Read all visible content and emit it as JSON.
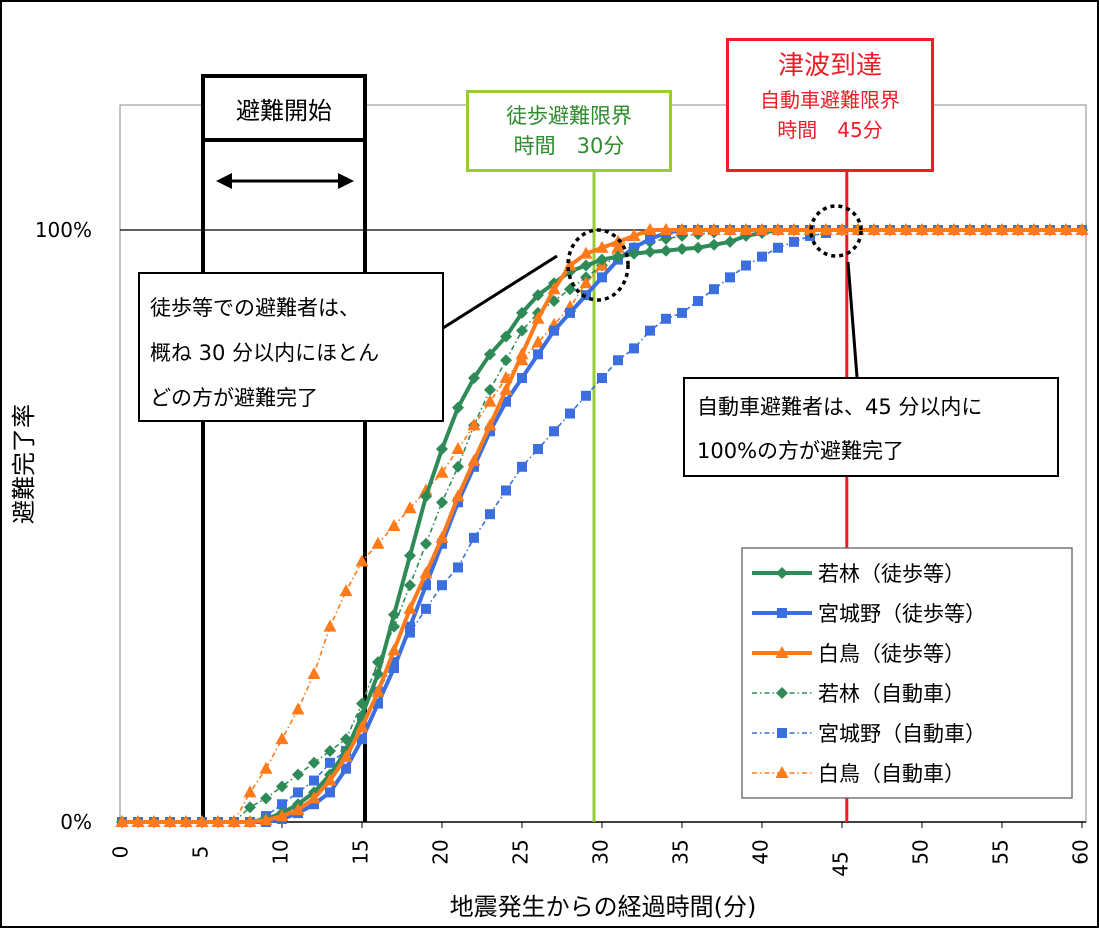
{
  "chart_data": {
    "type": "line",
    "xlabel": "地震発生からの経過時間(分)",
    "ylabel": "避難完了率",
    "xlim": [
      0,
      60
    ],
    "ylim": [
      0,
      100
    ],
    "x_ticks": [
      "0",
      "5",
      "10",
      "15",
      "20",
      "25",
      "30",
      "35",
      "40",
      "45",
      "50",
      "55",
      "60"
    ],
    "y_ticks": [
      "0%",
      "100%"
    ],
    "grid": false,
    "legend_position": "bottom-right",
    "x": [
      0,
      1,
      2,
      3,
      4,
      5,
      6,
      7,
      8,
      9,
      10,
      11,
      12,
      13,
      14,
      15,
      16,
      17,
      18,
      19,
      20,
      21,
      22,
      23,
      24,
      25,
      26,
      27,
      28,
      29,
      30,
      31,
      32,
      33,
      34,
      35,
      36,
      37,
      38,
      39,
      40,
      41,
      42,
      43,
      44,
      45,
      46,
      47,
      48,
      49,
      50,
      51,
      52,
      53,
      54,
      55,
      56,
      57,
      58,
      59,
      60
    ],
    "series": [
      {
        "name": "若林（徒歩等）",
        "style": "solid",
        "marker": "diamond",
        "color": "#2e8b57",
        "values": [
          0,
          0,
          0,
          0,
          0,
          0,
          0,
          0,
          0,
          0.5,
          1.5,
          3,
          5,
          8,
          12,
          18,
          25,
          35,
          45,
          55,
          63,
          70,
          75,
          79,
          82,
          86,
          89,
          91,
          93,
          94,
          95,
          95.5,
          96,
          96.3,
          96.5,
          96.8,
          97,
          97.5,
          98,
          99,
          99.5,
          100,
          100,
          100,
          100,
          100,
          100,
          100,
          100,
          100,
          100,
          100,
          100,
          100,
          100,
          100,
          100,
          100,
          100,
          100,
          100
        ]
      },
      {
        "name": "宮城野（徒歩等）",
        "style": "solid",
        "marker": "square",
        "color": "#3b6fe0",
        "values": [
          0,
          0,
          0,
          0,
          0,
          0,
          0,
          0,
          0,
          0,
          0.5,
          1.5,
          3,
          5,
          9,
          14,
          20,
          26,
          33,
          40,
          47,
          54,
          60,
          66,
          71,
          75,
          79,
          83,
          86,
          89,
          92,
          95,
          97,
          98.5,
          99.5,
          100,
          100,
          100,
          100,
          100,
          100,
          100,
          100,
          100,
          100,
          100,
          100,
          100,
          100,
          100,
          100,
          100,
          100,
          100,
          100,
          100,
          100,
          100,
          100,
          100,
          100
        ]
      },
      {
        "name": "白鳥（徒歩等）",
        "style": "solid",
        "marker": "triangle",
        "color": "#ff7a1a",
        "values": [
          0,
          0,
          0,
          0,
          0,
          0,
          0,
          0,
          0,
          0.3,
          1,
          2,
          4,
          7,
          11,
          16,
          22,
          29,
          36,
          42,
          48,
          55,
          61,
          67,
          73,
          79,
          85,
          90,
          94,
          96,
          97,
          98,
          99,
          100,
          100,
          100,
          100,
          100,
          100,
          100,
          100,
          100,
          100,
          100,
          100,
          100,
          100,
          100,
          100,
          100,
          100,
          100,
          100,
          100,
          100,
          100,
          100,
          100,
          100,
          100,
          100
        ]
      },
      {
        "name": "若林（自動車）",
        "style": "dotted",
        "marker": "diamond",
        "color": "#2e8b57",
        "values": [
          0,
          0,
          0,
          0,
          0,
          0,
          0,
          0,
          2.5,
          4,
          6,
          8,
          10,
          12,
          14,
          20,
          27,
          33,
          40,
          47,
          54,
          60,
          67,
          73,
          78,
          83,
          86,
          88,
          90,
          92,
          94,
          95.5,
          97,
          98,
          98.5,
          99,
          99.3,
          99.6,
          100,
          100,
          100,
          100,
          100,
          100,
          100,
          100,
          100,
          100,
          100,
          100,
          100,
          100,
          100,
          100,
          100,
          100,
          100,
          100,
          100,
          100,
          100
        ]
      },
      {
        "name": "宮城野（自動車）",
        "style": "dotted",
        "marker": "square",
        "color": "#3b6fe0",
        "values": [
          0,
          0,
          0,
          0,
          0,
          0,
          0,
          0,
          0,
          1,
          3,
          5,
          7,
          10,
          12,
          17,
          22,
          27,
          32,
          36,
          40,
          43,
          48,
          52,
          56,
          60,
          63,
          66,
          69,
          72,
          75,
          78,
          80,
          83,
          85,
          86,
          88,
          90,
          92,
          94,
          95.5,
          97,
          98,
          99,
          99.5,
          100,
          100,
          100,
          100,
          100,
          100,
          100,
          100,
          100,
          100,
          100,
          100,
          100,
          100,
          100,
          100
        ]
      },
      {
        "name": "白鳥（自動車）",
        "style": "dotted",
        "marker": "triangle",
        "color": "#ff7a1a",
        "values": [
          0,
          0,
          0,
          0,
          0,
          0,
          0,
          0,
          5,
          9,
          14,
          19,
          25,
          33,
          39,
          44,
          47,
          50,
          53,
          56,
          59,
          63,
          67,
          71,
          75,
          78,
          81,
          84,
          87,
          91,
          94,
          97,
          99,
          100,
          100,
          100,
          100,
          100,
          100,
          100,
          100,
          100,
          100,
          100,
          100,
          100,
          100,
          100,
          100,
          100,
          100,
          100,
          100,
          100,
          100,
          100,
          100,
          100,
          100,
          100,
          100
        ]
      }
    ],
    "annotations": {
      "start": {
        "label": "避難開始"
      },
      "walk_limit": {
        "line1": "徒歩避難限界",
        "line2": "時間　30分",
        "color": "#99cc33",
        "x": 29.5
      },
      "tsunami": {
        "line1": "津波到達",
        "line2": "自動車避難限界",
        "line3": "時間　45分",
        "color": "#ee1c25",
        "x": 45.3
      },
      "note_walk": [
        "徒歩等での避難者は、",
        "概ね 30 分以内にほとん",
        "どの方が避難完了"
      ],
      "note_car": [
        "自動車避難者は、45 分以内に",
        "100%の方が避難完了"
      ]
    }
  }
}
